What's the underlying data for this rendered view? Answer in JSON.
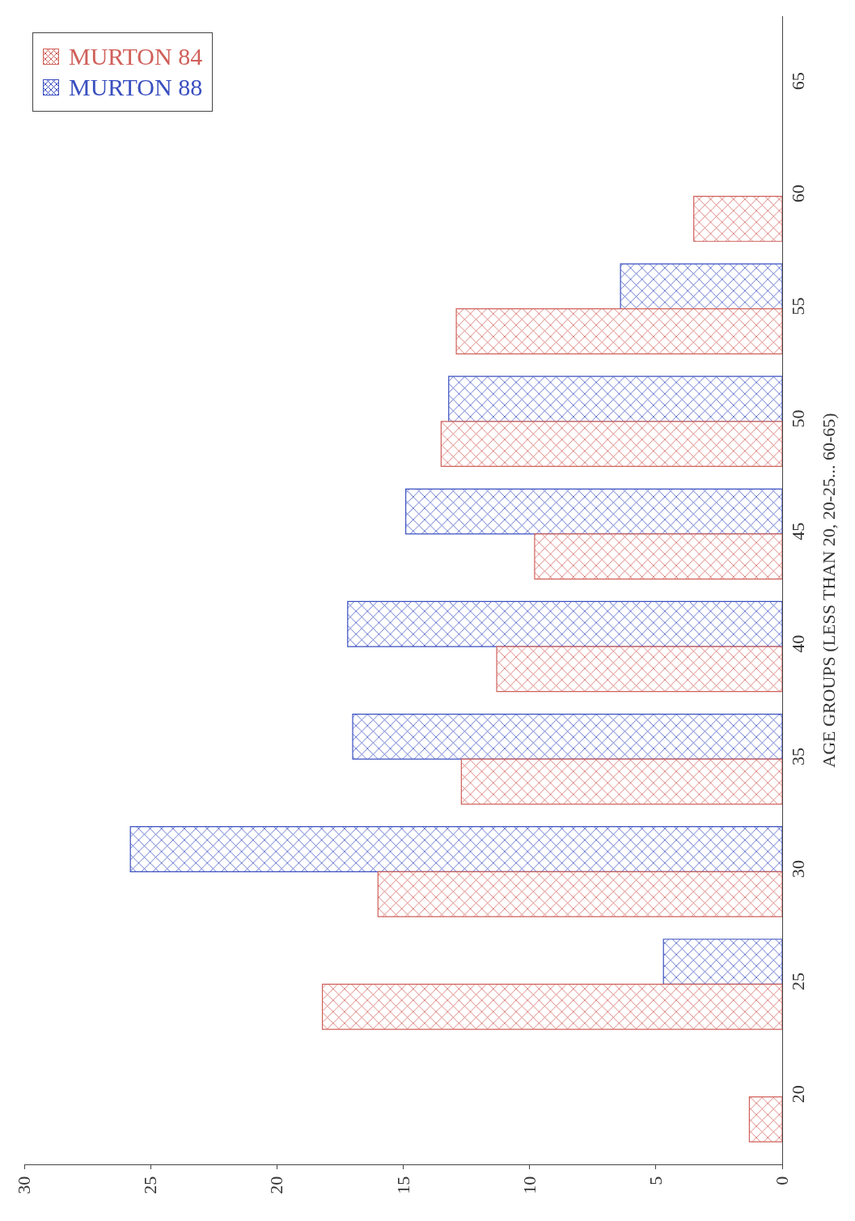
{
  "chart_data": {
    "type": "bar",
    "orientation": "horizontal",
    "ylabel": "AGE GROUPS (LESS THAN 20, 20-25... 60-65)",
    "categories": [
      "65",
      "60",
      "55",
      "50",
      "45",
      "40",
      "35",
      "30",
      "25",
      "20"
    ],
    "series": [
      {
        "name": "MURTON 88",
        "color": "#3a4fc0",
        "values": [
          null,
          null,
          6.4,
          13.2,
          14.9,
          17.2,
          17.0,
          25.8,
          4.7,
          null
        ]
      },
      {
        "name": "MURTON 84",
        "color": "#d0605a",
        "values": [
          null,
          3.5,
          12.9,
          13.5,
          9.8,
          11.3,
          12.7,
          16.0,
          18.2,
          1.3
        ]
      }
    ],
    "xlim": [
      30,
      0
    ],
    "xticks": [
      0,
      5,
      10,
      15,
      20,
      25,
      30
    ],
    "grid": false,
    "legend": "top left"
  }
}
